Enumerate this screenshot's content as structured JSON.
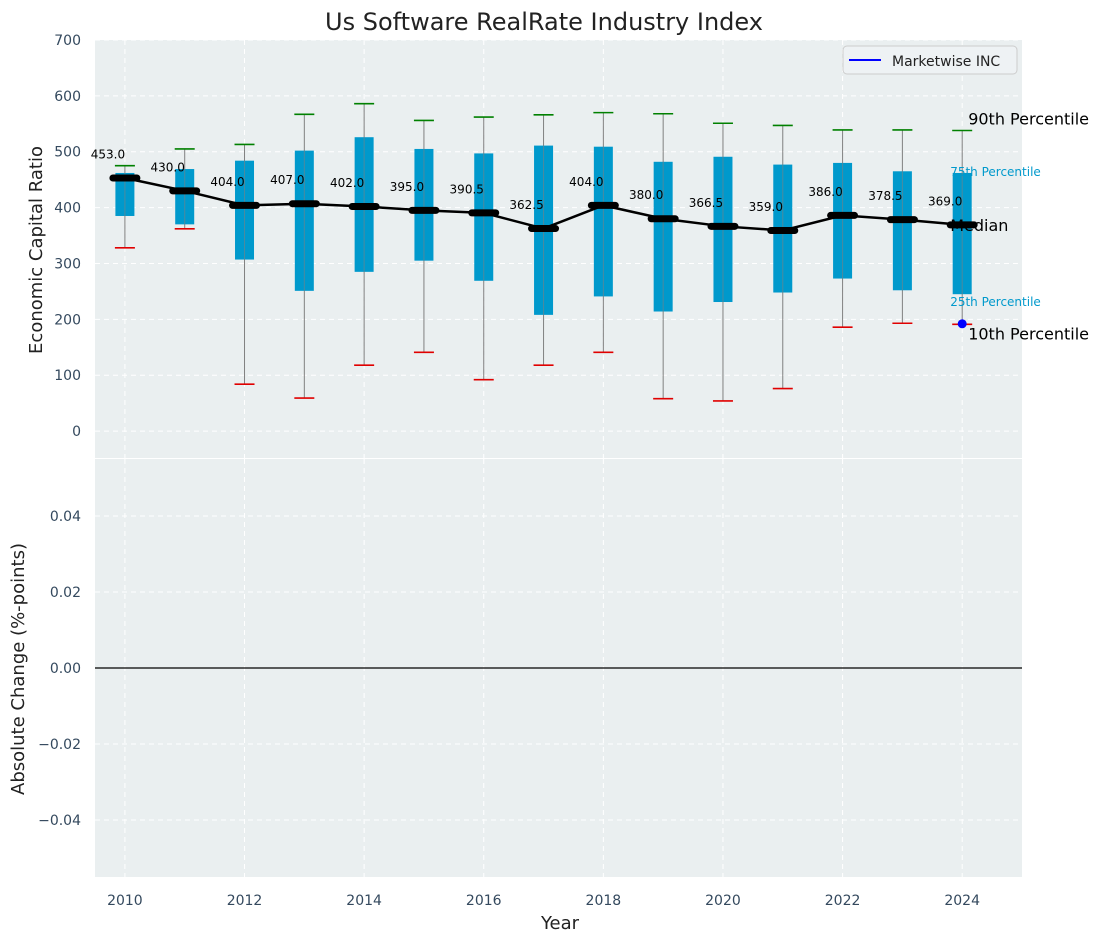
{
  "chart_data": [
    {
      "type": "box",
      "title": "Us Software RealRate Industry Index",
      "ylabel": "Economic Capital Ratio",
      "xlim": [
        2009.5,
        2025
      ],
      "ylim": [
        -50,
        700
      ],
      "yticks": [
        0,
        100,
        200,
        300,
        400,
        500,
        600,
        700
      ],
      "grid": true,
      "legend": {
        "entries": [
          "Marketwise INC"
        ],
        "placement": "top-right"
      },
      "series": [
        {
          "name": "Marketwise INC",
          "x": [
            2024
          ],
          "y": [
            192
          ]
        }
      ],
      "boxes": [
        {
          "year": 2010,
          "p10": 328,
          "p25": 385,
          "median": 453.0,
          "p75": 462,
          "p90": 475
        },
        {
          "year": 2011,
          "p10": 362,
          "p25": 370,
          "median": 430.0,
          "p75": 469,
          "p90": 505
        },
        {
          "year": 2012,
          "p10": 84,
          "p25": 307,
          "median": 404.0,
          "p75": 484,
          "p90": 513
        },
        {
          "year": 2013,
          "p10": 59,
          "p25": 251,
          "median": 407.0,
          "p75": 502,
          "p90": 567
        },
        {
          "year": 2014,
          "p10": 118,
          "p25": 285,
          "median": 402.0,
          "p75": 526,
          "p90": 586
        },
        {
          "year": 2015,
          "p10": 141,
          "p25": 305,
          "median": 395.0,
          "p75": 505,
          "p90": 556
        },
        {
          "year": 2016,
          "p10": 92,
          "p25": 269,
          "median": 390.5,
          "p75": 497,
          "p90": 562
        },
        {
          "year": 2017,
          "p10": 118,
          "p25": 208,
          "median": 362.5,
          "p75": 511,
          "p90": 566
        },
        {
          "year": 2018,
          "p10": 141,
          "p25": 241,
          "median": 404.0,
          "p75": 509,
          "p90": 570
        },
        {
          "year": 2019,
          "p10": 58,
          "p25": 214,
          "median": 380.0,
          "p75": 482,
          "p90": 568
        },
        {
          "year": 2020,
          "p10": 54,
          "p25": 231,
          "median": 366.5,
          "p75": 491,
          "p90": 551
        },
        {
          "year": 2021,
          "p10": 76,
          "p25": 248,
          "median": 359.0,
          "p75": 477,
          "p90": 547
        },
        {
          "year": 2022,
          "p10": 186,
          "p25": 273,
          "median": 386.0,
          "p75": 480,
          "p90": 539
        },
        {
          "year": 2023,
          "p10": 193,
          "p25": 252,
          "median": 378.5,
          "p75": 465,
          "p90": 539
        },
        {
          "year": 2024,
          "p10": 191,
          "p25": 245,
          "median": 369.0,
          "p75": 462,
          "p90": 538
        }
      ],
      "median_labels": [
        "453.0",
        "430.0",
        "404.0",
        "407.0",
        "402.0",
        "395.0",
        "390.5",
        "362.5",
        "404.0",
        "380.0",
        "366.5",
        "359.0",
        "386.0",
        "378.5",
        "369.0"
      ],
      "annotations": [
        "90th Percentile",
        "75th Percentile",
        "Median",
        "25th Percentile",
        "10th Percentile"
      ],
      "colors": {
        "box": "#0099cc",
        "median_line": "#000000",
        "p90_cap": "#008000",
        "p10_cap": "#e00000",
        "whisker": "#808080",
        "company_marker": "#0000ff",
        "background": "#eaeff0"
      }
    },
    {
      "type": "line",
      "xlabel": "Year",
      "ylabel": "Absolute Change (%-points)",
      "xlim": [
        2009.5,
        2025
      ],
      "ylim": [
        -0.055,
        0.055
      ],
      "yticks": [
        -0.04,
        -0.02,
        0.0,
        0.02,
        0.04
      ],
      "ytick_labels": [
        "−0.04",
        "−0.02",
        "0.00",
        "0.02",
        "0.04"
      ],
      "xticks": [
        2010,
        2012,
        2014,
        2016,
        2018,
        2020,
        2022,
        2024
      ],
      "grid": true,
      "zero_line": 0
    }
  ]
}
